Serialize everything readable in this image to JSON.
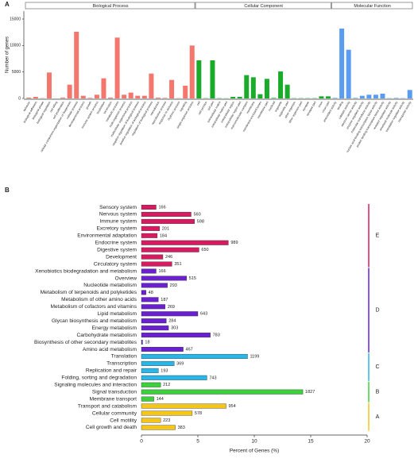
{
  "chart_data": [
    {
      "type": "bar",
      "orientation": "vertical",
      "panel": "A",
      "y_label": "Number of genes",
      "ylim": [
        0,
        16500
      ],
      "yticks": [
        0,
        5000,
        10000,
        15000
      ],
      "groups": [
        {
          "name": "Biological Process",
          "color": "#f4766c",
          "categories": [
            "behavior",
            "biological adhesion",
            "biological phase",
            "biological regulation",
            "cell killing",
            "cell proliferation",
            "cellular component organization or biogenesis",
            "cellular process",
            "developmental process",
            "growth",
            "immune system process",
            "localization",
            "locomotion",
            "metabolic process",
            "multi-organism process",
            "multicellular organismal process",
            "negative regulation of biological process",
            "positive regulation of biological process",
            "regulation of biological process",
            "reproduction",
            "reproductive process",
            "response to stimulus",
            "rhythmic process",
            "signaling",
            "single-organism process"
          ],
          "values": [
            150,
            300,
            50,
            4900,
            20,
            150,
            2600,
            12600,
            500,
            100,
            700,
            3800,
            150,
            11500,
            700,
            1100,
            500,
            500,
            4700,
            150,
            100,
            3500,
            50,
            2400,
            10000
          ]
        },
        {
          "name": "Cellular Component",
          "color": "#1aab2a",
          "categories": [
            "cell",
            "cell junction",
            "cell part",
            "extracellular matrix",
            "extracellular matrix part",
            "extracellular region",
            "extracellular region part",
            "macromolecular complex",
            "membrane",
            "membrane-enclosed lumen",
            "membrane part",
            "nucleoid",
            "organelle",
            "organelle part",
            "other organism",
            "other organism part",
            "synapse",
            "synapse part",
            "virion",
            "virion part"
          ],
          "values": [
            7200,
            50,
            7200,
            50,
            30,
            300,
            300,
            4400,
            4000,
            800,
            3700,
            100,
            5100,
            2600,
            50,
            50,
            50,
            50,
            400,
            400
          ]
        },
        {
          "name": "Molecular Function",
          "color": "#5b9bf0",
          "categories": [
            "antioxidant activity",
            "binding",
            "catalytic activity",
            "electron carrier activity",
            "enzyme regulator activity",
            "molecular transducer activity",
            "nucleic acid binding transcription factor activity",
            "protein binding transcription factor activity",
            "receptor regulator activity",
            "structural molecule activity",
            "translation regulator activity",
            "transporter activity"
          ],
          "values": [
            100,
            13200,
            9200,
            100,
            500,
            700,
            700,
            900,
            50,
            100,
            50,
            1600
          ]
        }
      ]
    },
    {
      "type": "bar",
      "orientation": "horizontal",
      "panel": "B",
      "x_label": "Percent of Genes (%)",
      "xlim": [
        0,
        20
      ],
      "xticks": [
        0,
        5,
        10,
        15,
        20
      ],
      "groups": [
        {
          "name": "E",
          "color": "#d81b60",
          "categories": [
            "Sensory system",
            "Nervous system",
            "Immune system",
            "Excretory system",
            "Environmental adaptation",
            "Endocrine system",
            "Digestive system",
            "Development",
            "Circulatory system"
          ],
          "values": [
            1.3,
            4.4,
            4.7,
            1.6,
            1.4,
            7.7,
            5.1,
            1.9,
            2.7
          ],
          "counts": [
            166,
            560,
            598,
            201,
            184,
            989,
            650,
            246,
            351
          ]
        },
        {
          "name": "D",
          "color": "#6a1fd1",
          "categories": [
            "Xenobiotics biodegradation and metabolism",
            "Overview",
            "Nucleotide metabolism",
            "Metabolism of terpenoids and polyketides",
            "Metabolism of other amino acids",
            "Metabolism of cofactors and vitamins",
            "Lipid metabolism",
            "Glycan biosynthesis and metabolism",
            "Energy metabolism",
            "Carbohydrate metabolism",
            "Biosynthesis of other secondary metabolites",
            "Amino acid metabolism"
          ],
          "values": [
            1.3,
            4.0,
            2.3,
            0.4,
            1.5,
            2.1,
            5.0,
            2.2,
            2.4,
            6.1,
            0.1,
            3.7
          ],
          "counts": [
            166,
            515,
            293,
            48,
            187,
            269,
            643,
            284,
            303,
            783,
            18,
            467
          ]
        },
        {
          "name": "C",
          "color": "#29b6e8",
          "categories": [
            "Translation",
            "Transcription",
            "Replication and repair",
            "Folding, sorting and degradation"
          ],
          "values": [
            9.4,
            2.9,
            1.5,
            5.8
          ],
          "counts": [
            1199,
            369,
            193,
            743
          ]
        },
        {
          "name": "B",
          "color": "#3ad13a",
          "categories": [
            "Signaling molecules and interaction",
            "Signal transduction",
            "Membrane transport"
          ],
          "values": [
            1.7,
            14.3,
            1.1
          ],
          "counts": [
            212,
            1827,
            144
          ]
        },
        {
          "name": "A",
          "color": "#f5c518",
          "categories": [
            "Transport and catabolism",
            "Cellular community",
            "Cell motility",
            "Cell growth and death"
          ],
          "values": [
            7.5,
            4.5,
            1.7,
            3.0
          ],
          "counts": [
            954,
            578,
            223,
            383
          ]
        }
      ]
    }
  ]
}
